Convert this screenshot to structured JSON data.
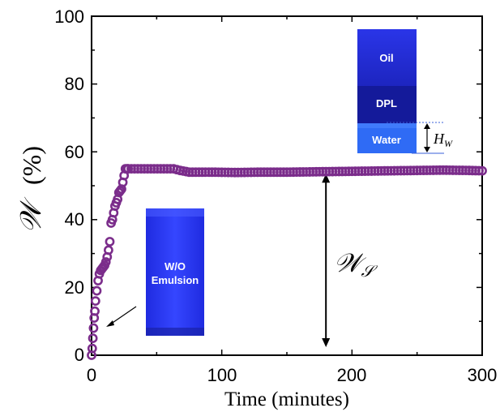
{
  "chart_data": {
    "type": "scatter",
    "xlabel": "Time (minutes)",
    "ylabel": "𝒲",
    "ylabel_unit": "(%)",
    "xlim": [
      0,
      300
    ],
    "ylim": [
      0,
      100
    ],
    "xticks": [
      "0",
      "100",
      "200",
      "300"
    ],
    "yticks": [
      "0",
      "20",
      "40",
      "60",
      "80",
      "100"
    ],
    "grid": false,
    "legend": "none",
    "colors": {
      "series": "#7b2d8b",
      "vial_blue": "#2b3cf5",
      "arrow": "#000000"
    },
    "series": [
      {
        "x": [
          0,
          0.5,
          1,
          1.5,
          2,
          2.5,
          3,
          4,
          5,
          6,
          7,
          8,
          9,
          10,
          11,
          12,
          13,
          14,
          15,
          16,
          17,
          18,
          19,
          20,
          21,
          22,
          23,
          24,
          25,
          26,
          27,
          28
        ],
        "y": [
          0,
          2,
          5,
          8,
          11,
          13,
          16,
          19,
          22,
          24,
          25,
          25.5,
          26,
          26.5,
          27.5,
          29,
          31,
          33.5,
          39,
          40,
          42,
          44,
          45,
          46,
          48,
          48.5,
          49,
          51,
          53,
          55,
          55,
          55
        ]
      },
      {
        "x": [
          28,
          33,
          38,
          43,
          48,
          53,
          58,
          63,
          68,
          75,
          85,
          95,
          110,
          130,
          150,
          170,
          190,
          210,
          230,
          250,
          270,
          290,
          300
        ],
        "y": [
          55,
          55,
          55,
          55,
          55,
          55,
          55,
          55,
          54.5,
          54,
          54,
          54,
          53.9,
          54,
          54,
          54.1,
          54.2,
          54.3,
          54.4,
          54.5,
          54.6,
          54.5,
          54.4
        ]
      }
    ],
    "annotations": {
      "double_arrow_x": 180,
      "double_arrow_y": [
        0,
        54
      ],
      "ws_label_main": "𝒲",
      "ws_label_sub": "𝒮",
      "inset_emulsion_lines": [
        "W/O",
        "Emulsion"
      ],
      "inset_layers": [
        "Oil",
        "DPL",
        "Water"
      ],
      "hw_label_main": "H",
      "hw_label_sub": "W"
    }
  }
}
